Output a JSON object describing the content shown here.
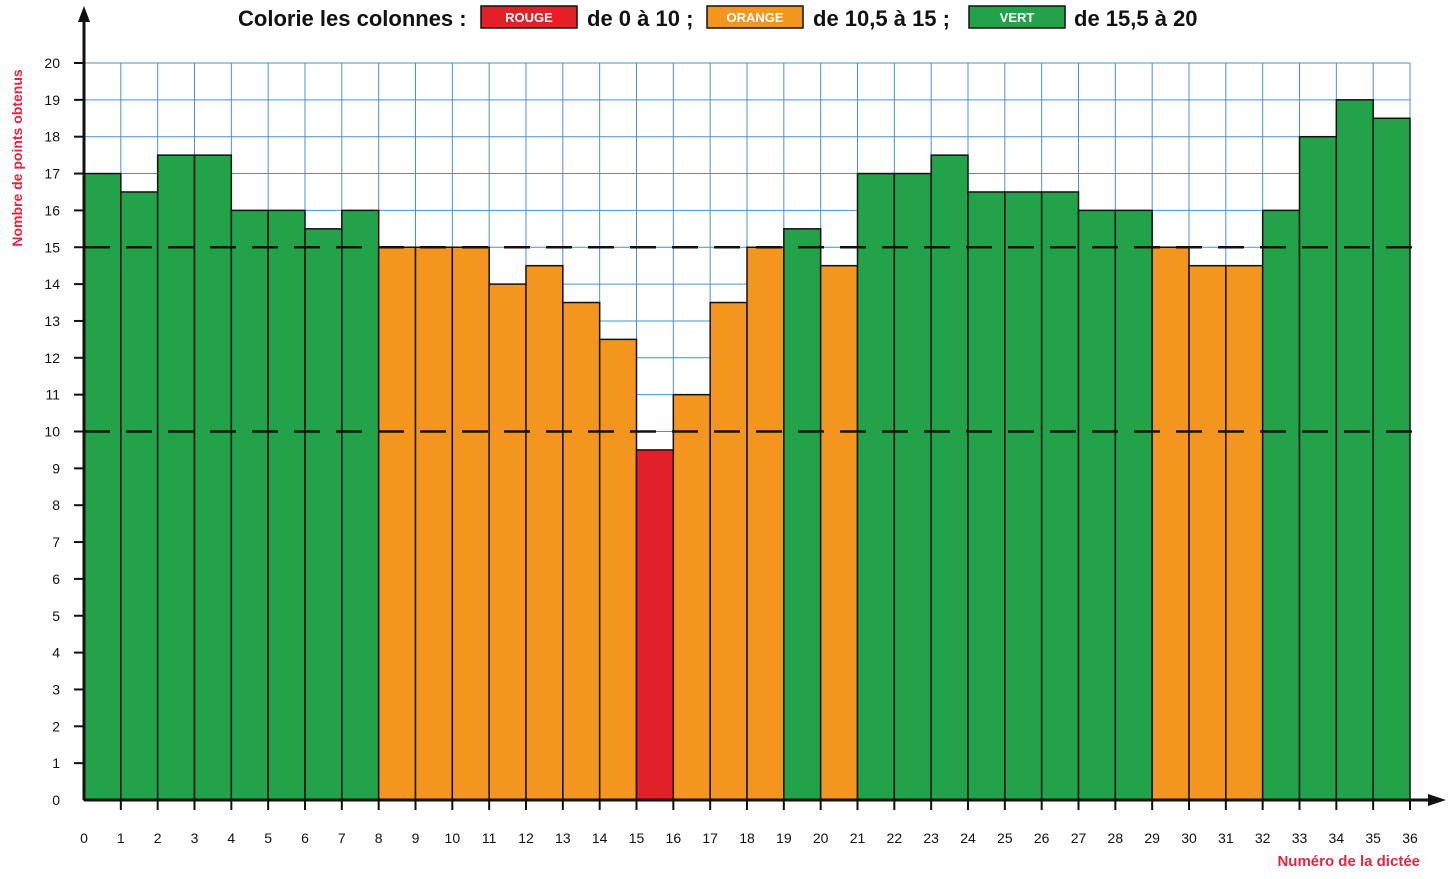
{
  "header": {
    "prefix": "Colorie les colonnes :",
    "legend": [
      {
        "label": "ROUGE",
        "range": "de 0 à 10 ;",
        "color": "#e32027"
      },
      {
        "label": "ORANGE",
        "range": "de 10,5 à 15 ;",
        "color": "#f3951f"
      },
      {
        "label": "VERT",
        "range": "de 15,5 à 20",
        "color": "#22a34a"
      }
    ]
  },
  "chart_data": {
    "type": "bar",
    "ylabel": "Nombre de points obtenus",
    "xlabel": "Numéro de la dictée",
    "ylim": [
      0,
      20
    ],
    "xlim": [
      0,
      36
    ],
    "x_ticks": [
      0,
      1,
      2,
      3,
      4,
      5,
      6,
      7,
      8,
      9,
      10,
      11,
      12,
      13,
      14,
      15,
      16,
      17,
      18,
      19,
      20,
      21,
      22,
      23,
      24,
      25,
      26,
      27,
      28,
      29,
      30,
      31,
      32,
      33,
      34,
      35,
      36
    ],
    "y_ticks": [
      0,
      1,
      2,
      3,
      4,
      5,
      6,
      7,
      8,
      9,
      10,
      11,
      12,
      13,
      14,
      15,
      16,
      17,
      18,
      19,
      20
    ],
    "grid": true,
    "reference_lines": [
      10,
      15
    ],
    "values": [
      17,
      16.5,
      17.5,
      17.5,
      16,
      16,
      15.5,
      16,
      15,
      15,
      15,
      14,
      14.5,
      13.5,
      12.5,
      9.5,
      11,
      13.5,
      15,
      15.5,
      14.5,
      17,
      17,
      17.5,
      16.5,
      16.5,
      16.5,
      16,
      16,
      15,
      14.5,
      14.5,
      16,
      18,
      19,
      18.5
    ],
    "colors": [
      "green",
      "green",
      "green",
      "green",
      "green",
      "green",
      "green",
      "green",
      "orange",
      "orange",
      "orange",
      "orange",
      "orange",
      "orange",
      "orange",
      "red",
      "orange",
      "orange",
      "orange",
      "green",
      "orange",
      "green",
      "green",
      "green",
      "green",
      "green",
      "green",
      "green",
      "green",
      "orange",
      "orange",
      "orange",
      "green",
      "green",
      "green",
      "green"
    ],
    "color_map": {
      "red": "#e32027",
      "orange": "#f3951f",
      "green": "#22a34a"
    },
    "grid_color": "#4a8fd6",
    "axis_label_color": "#e0263f"
  }
}
